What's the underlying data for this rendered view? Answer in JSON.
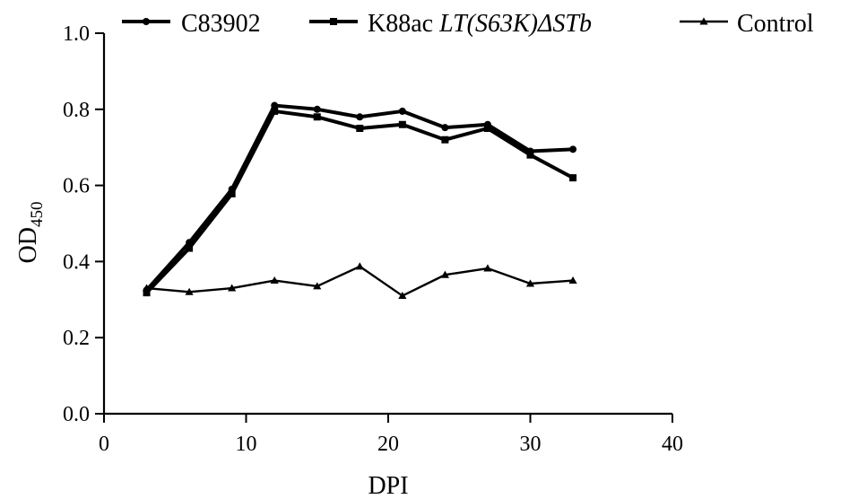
{
  "chart_data": {
    "type": "line",
    "title": "",
    "xlabel": "DPI",
    "ylabel": "OD",
    "ylabel_subscript": "450",
    "xlim": [
      0,
      40
    ],
    "ylim": [
      0.0,
      1.0
    ],
    "xticks": [
      "0",
      "10",
      "20",
      "30",
      "40"
    ],
    "yticks": [
      "0.0",
      "0.2",
      "0.4",
      "0.6",
      "0.8",
      "1.0"
    ],
    "grid": false,
    "legend_position": "top",
    "x": [
      3,
      6,
      9,
      12,
      15,
      18,
      21,
      24,
      27,
      30,
      33
    ],
    "series": [
      {
        "name": "C83902",
        "name_italic": "",
        "marker": "circle",
        "line_width": "thick",
        "color": "#000000",
        "values": [
          0.325,
          0.45,
          0.59,
          0.81,
          0.8,
          0.78,
          0.795,
          0.752,
          0.76,
          0.69,
          0.695
        ]
      },
      {
        "name": "K88ac ",
        "name_italic": "LT(S63K)ΔSTb",
        "marker": "square",
        "line_width": "thick",
        "color": "#000000",
        "values": [
          0.318,
          0.435,
          0.578,
          0.795,
          0.78,
          0.75,
          0.76,
          0.72,
          0.75,
          0.68,
          0.62
        ]
      },
      {
        "name": "Control",
        "name_italic": "",
        "marker": "triangle",
        "line_width": "thin",
        "color": "#000000",
        "values": [
          0.33,
          0.32,
          0.33,
          0.35,
          0.335,
          0.387,
          0.31,
          0.365,
          0.382,
          0.342,
          0.35
        ]
      }
    ]
  }
}
